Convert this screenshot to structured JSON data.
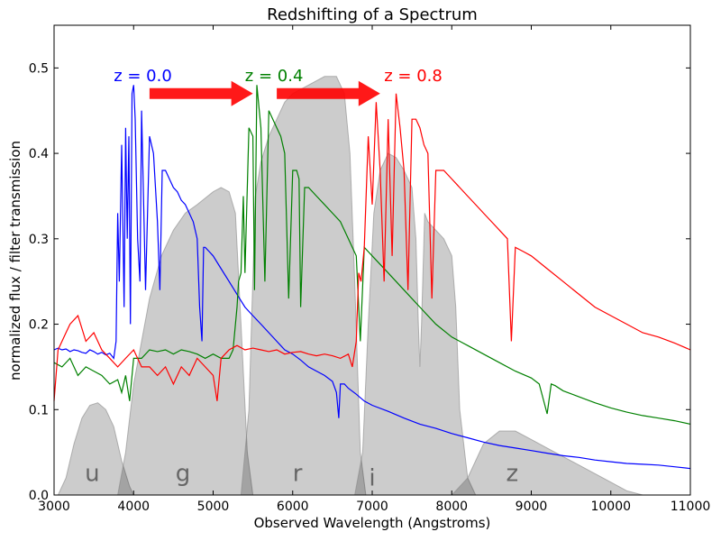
{
  "chart_data": {
    "type": "line",
    "title": "Redshifting of a Spectrum",
    "xlabel": "Observed Wavelength (Angstroms)",
    "ylabel": "normalized flux / filter transmission",
    "xlim": [
      3000,
      11000
    ],
    "ylim": [
      0,
      0.55
    ],
    "xticks": [
      3000,
      4000,
      5000,
      6000,
      7000,
      8000,
      9000,
      10000,
      11000
    ],
    "xtick_labels": [
      "3000",
      "4000",
      "5000",
      "6000",
      "7000",
      "8000",
      "9000",
      "10000",
      "11000"
    ],
    "yticks": [
      0.0,
      0.1,
      0.2,
      0.3,
      0.4,
      0.5
    ],
    "ytick_labels": [
      "0.0",
      "0.1",
      "0.2",
      "0.3",
      "0.4",
      "0.5"
    ],
    "grid": false,
    "filters": [
      {
        "label": "u",
        "label_at": [
          3480,
          0.01
        ],
        "points": [
          [
            3050,
            0
          ],
          [
            3150,
            0.02
          ],
          [
            3250,
            0.06
          ],
          [
            3350,
            0.09
          ],
          [
            3450,
            0.105
          ],
          [
            3550,
            0.108
          ],
          [
            3650,
            0.1
          ],
          [
            3750,
            0.08
          ],
          [
            3850,
            0.04
          ],
          [
            3950,
            0.01
          ],
          [
            4000,
            0
          ]
        ]
      },
      {
        "label": "g",
        "label_at": [
          4620,
          0.01
        ],
        "points": [
          [
            3800,
            0
          ],
          [
            3900,
            0.05
          ],
          [
            4000,
            0.13
          ],
          [
            4100,
            0.18
          ],
          [
            4200,
            0.23
          ],
          [
            4350,
            0.28
          ],
          [
            4500,
            0.31
          ],
          [
            4650,
            0.33
          ],
          [
            4800,
            0.34
          ],
          [
            5000,
            0.355
          ],
          [
            5100,
            0.36
          ],
          [
            5200,
            0.355
          ],
          [
            5280,
            0.33
          ],
          [
            5350,
            0.2
          ],
          [
            5430,
            0.05
          ],
          [
            5500,
            0
          ]
        ]
      },
      {
        "label": "r",
        "label_at": [
          6060,
          0.01
        ],
        "points": [
          [
            5350,
            0
          ],
          [
            5450,
            0.1
          ],
          [
            5530,
            0.35
          ],
          [
            5600,
            0.39
          ],
          [
            5700,
            0.42
          ],
          [
            5800,
            0.44
          ],
          [
            5900,
            0.46
          ],
          [
            6000,
            0.47
          ],
          [
            6200,
            0.48
          ],
          [
            6400,
            0.49
          ],
          [
            6550,
            0.49
          ],
          [
            6650,
            0.47
          ],
          [
            6720,
            0.4
          ],
          [
            6780,
            0.25
          ],
          [
            6850,
            0.05
          ],
          [
            6920,
            0
          ]
        ]
      },
      {
        "label": "i",
        "label_at": [
          7000,
          0.005
        ],
        "points": [
          [
            6780,
            0
          ],
          [
            6880,
            0.05
          ],
          [
            6950,
            0.2
          ],
          [
            7020,
            0.33
          ],
          [
            7100,
            0.38
          ],
          [
            7200,
            0.4
          ],
          [
            7300,
            0.395
          ],
          [
            7400,
            0.38
          ],
          [
            7500,
            0.36
          ],
          [
            7550,
            0.3
          ],
          [
            7580,
            0.2
          ],
          [
            7600,
            0.15
          ],
          [
            7620,
            0.2
          ],
          [
            7660,
            0.33
          ],
          [
            7700,
            0.32
          ],
          [
            7800,
            0.31
          ],
          [
            7900,
            0.3
          ],
          [
            8000,
            0.28
          ],
          [
            8050,
            0.22
          ],
          [
            8100,
            0.1
          ],
          [
            8200,
            0.02
          ],
          [
            8300,
            0
          ]
        ]
      },
      {
        "label": "z",
        "label_at": [
          8760,
          0.01
        ],
        "points": [
          [
            8000,
            0
          ],
          [
            8200,
            0.02
          ],
          [
            8400,
            0.06
          ],
          [
            8600,
            0.075
          ],
          [
            8800,
            0.075
          ],
          [
            9000,
            0.065
          ],
          [
            9200,
            0.055
          ],
          [
            9400,
            0.045
          ],
          [
            9600,
            0.035
          ],
          [
            9800,
            0.025
          ],
          [
            10000,
            0.015
          ],
          [
            10200,
            0.005
          ],
          [
            10400,
            0
          ]
        ]
      }
    ],
    "series": [
      {
        "name": "z = 0.0",
        "color": "#0000ff",
        "x": [
          3000,
          3050,
          3100,
          3150,
          3200,
          3250,
          3300,
          3350,
          3400,
          3450,
          3500,
          3550,
          3600,
          3650,
          3700,
          3750,
          3780,
          3800,
          3820,
          3850,
          3880,
          3900,
          3920,
          3940,
          3960,
          3980,
          4000,
          4020,
          4050,
          4080,
          4100,
          4150,
          4200,
          4250,
          4300,
          4330,
          4360,
          4400,
          4450,
          4500,
          4550,
          4600,
          4650,
          4700,
          4750,
          4800,
          4830,
          4860,
          4880,
          4900,
          4950,
          5000,
          5100,
          5200,
          5300,
          5400,
          5500,
          5600,
          5700,
          5800,
          5900,
          6000,
          6100,
          6200,
          6300,
          6400,
          6500,
          6550,
          6580,
          6600,
          6650,
          6700,
          6800,
          6900,
          7000,
          7200,
          7400,
          7600,
          7800,
          8000,
          8200,
          8400,
          8600,
          8800,
          9000,
          9200,
          9400,
          9600,
          9800,
          10000,
          10200,
          10400,
          10600,
          10800,
          11000
        ],
        "y": [
          0.17,
          0.172,
          0.17,
          0.171,
          0.168,
          0.17,
          0.169,
          0.167,
          0.166,
          0.17,
          0.168,
          0.165,
          0.167,
          0.164,
          0.166,
          0.16,
          0.18,
          0.33,
          0.25,
          0.41,
          0.22,
          0.43,
          0.3,
          0.42,
          0.2,
          0.47,
          0.48,
          0.44,
          0.3,
          0.25,
          0.45,
          0.24,
          0.42,
          0.4,
          0.32,
          0.24,
          0.38,
          0.38,
          0.37,
          0.36,
          0.355,
          0.345,
          0.34,
          0.33,
          0.32,
          0.3,
          0.22,
          0.18,
          0.29,
          0.29,
          0.285,
          0.28,
          0.265,
          0.25,
          0.235,
          0.22,
          0.21,
          0.2,
          0.19,
          0.18,
          0.17,
          0.165,
          0.158,
          0.15,
          0.145,
          0.14,
          0.133,
          0.12,
          0.09,
          0.13,
          0.13,
          0.125,
          0.118,
          0.11,
          0.105,
          0.098,
          0.09,
          0.083,
          0.078,
          0.072,
          0.067,
          0.062,
          0.058,
          0.055,
          0.052,
          0.049,
          0.046,
          0.044,
          0.041,
          0.039,
          0.037,
          0.036,
          0.035,
          0.033,
          0.031
        ]
      },
      {
        "name": "z = 0.4",
        "color": "#008000",
        "x": [
          3000,
          3100,
          3200,
          3300,
          3400,
          3500,
          3600,
          3700,
          3800,
          3850,
          3900,
          3950,
          4000,
          4100,
          4200,
          4300,
          4400,
          4500,
          4600,
          4700,
          4800,
          4900,
          5000,
          5100,
          5200,
          5250,
          5300,
          5320,
          5350,
          5380,
          5400,
          5450,
          5500,
          5520,
          5550,
          5600,
          5650,
          5700,
          5750,
          5800,
          5850,
          5900,
          5950,
          6000,
          6050,
          6080,
          6100,
          6150,
          6200,
          6300,
          6400,
          6500,
          6600,
          6700,
          6800,
          6850,
          6900,
          7000,
          7200,
          7400,
          7600,
          7800,
          8000,
          8200,
          8400,
          8600,
          8800,
          9000,
          9100,
          9200,
          9250,
          9300,
          9400,
          9600,
          9800,
          10000,
          10200,
          10400,
          10600,
          10800,
          11000
        ],
        "y": [
          0.155,
          0.15,
          0.16,
          0.14,
          0.15,
          0.145,
          0.14,
          0.13,
          0.135,
          0.12,
          0.14,
          0.11,
          0.16,
          0.16,
          0.17,
          0.168,
          0.17,
          0.165,
          0.17,
          0.168,
          0.165,
          0.16,
          0.165,
          0.16,
          0.16,
          0.17,
          0.22,
          0.25,
          0.26,
          0.35,
          0.26,
          0.43,
          0.42,
          0.24,
          0.48,
          0.43,
          0.25,
          0.45,
          0.44,
          0.43,
          0.42,
          0.4,
          0.23,
          0.38,
          0.38,
          0.37,
          0.22,
          0.36,
          0.36,
          0.35,
          0.34,
          0.33,
          0.32,
          0.3,
          0.28,
          0.18,
          0.29,
          0.28,
          0.26,
          0.24,
          0.22,
          0.2,
          0.185,
          0.175,
          0.165,
          0.155,
          0.145,
          0.137,
          0.13,
          0.095,
          0.13,
          0.128,
          0.122,
          0.115,
          0.108,
          0.102,
          0.097,
          0.093,
          0.09,
          0.087,
          0.083
        ]
      },
      {
        "name": "z = 0.8",
        "color": "#ff0000",
        "x": [
          3000,
          3050,
          3100,
          3150,
          3200,
          3300,
          3400,
          3500,
          3600,
          3700,
          3800,
          3900,
          4000,
          4100,
          4200,
          4300,
          4400,
          4500,
          4600,
          4700,
          4800,
          4900,
          5000,
          5050,
          5100,
          5200,
          5300,
          5400,
          5500,
          5600,
          5700,
          5800,
          5900,
          6000,
          6100,
          6200,
          6300,
          6400,
          6500,
          6600,
          6700,
          6750,
          6800,
          6830,
          6860,
          6900,
          6950,
          7000,
          7050,
          7100,
          7150,
          7200,
          7250,
          7300,
          7350,
          7400,
          7450,
          7500,
          7550,
          7600,
          7650,
          7700,
          7750,
          7800,
          7850,
          7900,
          8000,
          8100,
          8200,
          8300,
          8400,
          8500,
          8600,
          8700,
          8750,
          8800,
          8900,
          9000,
          9200,
          9400,
          9600,
          9800,
          10000,
          10200,
          10400,
          10600,
          10800,
          11000
        ],
        "y": [
          0.11,
          0.17,
          0.18,
          0.19,
          0.2,
          0.21,
          0.18,
          0.19,
          0.17,
          0.16,
          0.15,
          0.16,
          0.17,
          0.15,
          0.15,
          0.14,
          0.15,
          0.13,
          0.15,
          0.14,
          0.16,
          0.15,
          0.14,
          0.11,
          0.16,
          0.17,
          0.175,
          0.17,
          0.172,
          0.17,
          0.168,
          0.17,
          0.165,
          0.167,
          0.168,
          0.165,
          0.163,
          0.165,
          0.163,
          0.16,
          0.165,
          0.15,
          0.18,
          0.26,
          0.25,
          0.29,
          0.42,
          0.34,
          0.46,
          0.38,
          0.25,
          0.44,
          0.28,
          0.47,
          0.43,
          0.38,
          0.24,
          0.44,
          0.44,
          0.43,
          0.41,
          0.4,
          0.23,
          0.38,
          0.38,
          0.38,
          0.37,
          0.36,
          0.35,
          0.34,
          0.33,
          0.32,
          0.31,
          0.3,
          0.18,
          0.29,
          0.285,
          0.28,
          0.265,
          0.25,
          0.235,
          0.22,
          0.21,
          0.2,
          0.19,
          0.185,
          0.178,
          0.17
        ]
      }
    ],
    "annotations": [
      {
        "text": "z = 0.0",
        "color": "#0000ff",
        "at": [
          3750,
          0.49
        ]
      },
      {
        "text": "z = 0.4",
        "color": "#008000",
        "at": [
          5400,
          0.49
        ]
      },
      {
        "text": "z = 0.8",
        "color": "#ff0000",
        "at": [
          7150,
          0.49
        ]
      }
    ],
    "arrows": [
      {
        "from": [
          4200,
          0.47
        ],
        "to": [
          5500,
          0.47
        ],
        "color": "#ff0000"
      },
      {
        "from": [
          5800,
          0.47
        ],
        "to": [
          7100,
          0.47
        ],
        "color": "#ff0000"
      }
    ]
  }
}
